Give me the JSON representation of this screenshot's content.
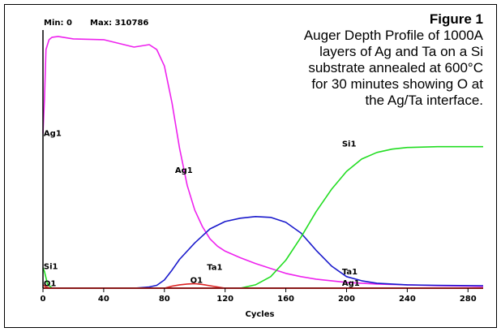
{
  "header": {
    "min_label": "Min: 0",
    "max_label": "Max: 310786"
  },
  "caption": {
    "title": "Figure 1",
    "lines": [
      "Auger Depth Profile of 1000A",
      "layers of Ag and Ta on a Si",
      "substrate annealed at 600°C",
      "for 30 minutes showing O at",
      "the Ag/Ta interface."
    ]
  },
  "chart_data": {
    "type": "line",
    "title": "",
    "xlabel": "Cycles",
    "ylabel": "",
    "xlim": [
      0,
      290
    ],
    "ylim": [
      0,
      310786
    ],
    "xticks": [
      0,
      40,
      80,
      120,
      160,
      200,
      240,
      280
    ],
    "grid": false,
    "series": [
      {
        "name": "Ag1",
        "color": "#ee22ee",
        "x": [
          0,
          1,
          2,
          4,
          6,
          10,
          20,
          40,
          60,
          70,
          75,
          80,
          85,
          90,
          95,
          100,
          105,
          110,
          115,
          120,
          130,
          140,
          150,
          160,
          170,
          180,
          190,
          200,
          220,
          240,
          260,
          280,
          290
        ],
        "y": [
          188000,
          230000,
          290000,
          302000,
          305000,
          306000,
          303000,
          302000,
          293000,
          296000,
          290000,
          270000,
          225000,
          170000,
          125000,
          95000,
          75000,
          60000,
          51000,
          45000,
          37000,
          30000,
          24000,
          18000,
          14000,
          11000,
          9000,
          7000,
          5000,
          4000,
          3000,
          2500,
          2000
        ]
      },
      {
        "name": "Ta1",
        "color": "#1a1acc",
        "x": [
          0,
          60,
          70,
          75,
          80,
          85,
          90,
          100,
          110,
          120,
          130,
          140,
          150,
          160,
          170,
          180,
          190,
          200,
          210,
          220,
          240,
          260,
          290
        ],
        "y": [
          0,
          0,
          1500,
          3500,
          10000,
          22000,
          35000,
          55000,
          72000,
          81000,
          85000,
          87000,
          86000,
          80000,
          67000,
          46000,
          27000,
          14000,
          9000,
          6000,
          4000,
          3500,
          3000
        ]
      },
      {
        "name": "Si1",
        "color": "#22dd22",
        "x": [
          0,
          1,
          3,
          6,
          10,
          20,
          130,
          140,
          150,
          160,
          170,
          180,
          190,
          200,
          210,
          220,
          230,
          240,
          260,
          280,
          290
        ],
        "y": [
          25000,
          20000,
          5000,
          0,
          0,
          0,
          0,
          4000,
          14000,
          34000,
          62000,
          93000,
          120000,
          142000,
          157000,
          165000,
          169000,
          171000,
          172000,
          172000,
          172000
        ]
      },
      {
        "name": "O1",
        "color": "#dd2222",
        "x": [
          0,
          2,
          5,
          80,
          85,
          90,
          95,
          100,
          105,
          110,
          115,
          120,
          290
        ],
        "y": [
          4000,
          1500,
          0,
          0,
          2500,
          4000,
          5000,
          5500,
          4500,
          3000,
          1500,
          0,
          0
        ]
      }
    ],
    "labels": [
      {
        "text": "Ag1",
        "x": 0.5,
        "y": 185000
      },
      {
        "text": "Ag1",
        "x": 87,
        "y": 140000
      },
      {
        "text": "Ag1",
        "x": 197,
        "y": 3000
      },
      {
        "text": "Si1",
        "x": 0.5,
        "y": 23000
      },
      {
        "text": "Si1",
        "x": 197,
        "y": 172000
      },
      {
        "text": "Ta1",
        "x": 108,
        "y": 22000
      },
      {
        "text": "Ta1",
        "x": 197,
        "y": 17000
      },
      {
        "text": "O1",
        "x": 0.5,
        "y": 2500
      },
      {
        "text": "O1",
        "x": 97,
        "y": 6500
      }
    ]
  }
}
